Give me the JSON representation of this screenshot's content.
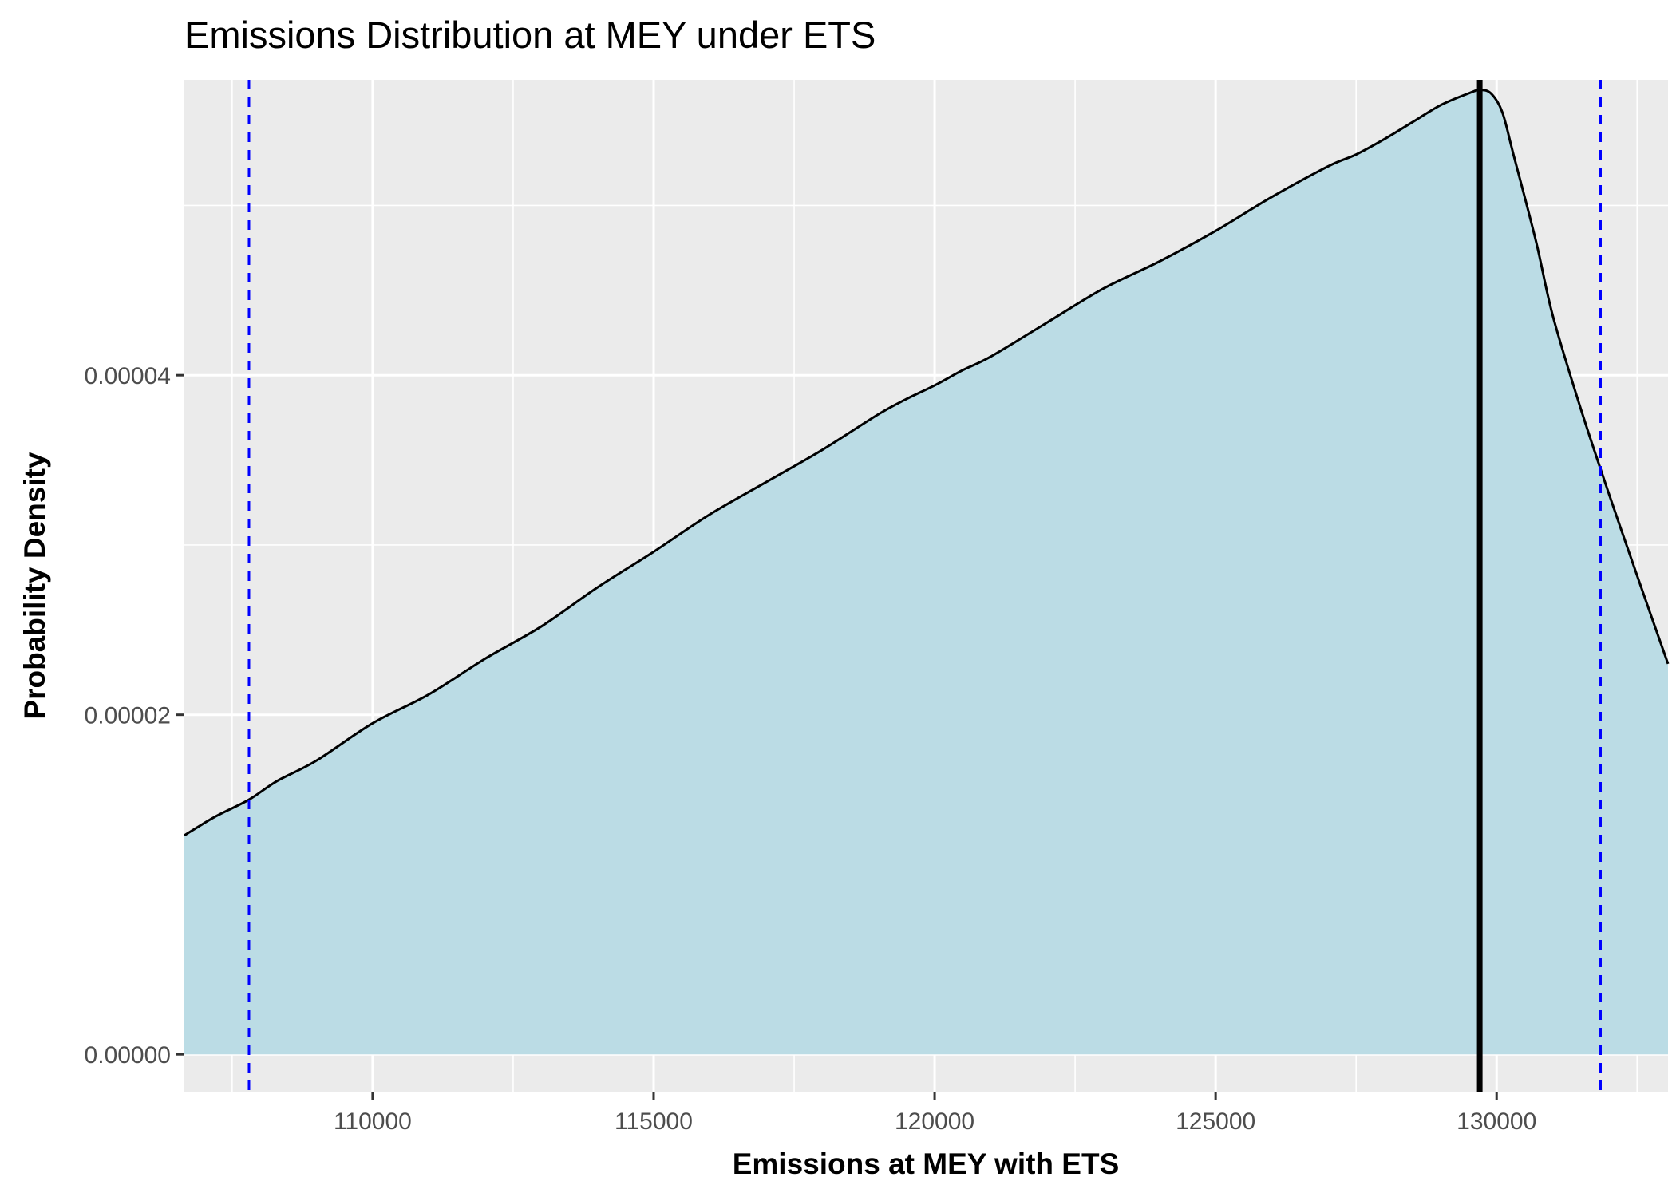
{
  "chart_data": {
    "type": "area",
    "title": "Emissions Distribution at MEY under ETS",
    "xlabel": "Emissions at MEY with ETS",
    "ylabel": "Probability Density",
    "xlim": [
      106650,
      133050
    ],
    "ylim": [
      -2.2e-06,
      5.74e-05
    ],
    "x_ticks": [
      110000,
      115000,
      120000,
      125000,
      130000
    ],
    "x_tick_labels": [
      "110000",
      "115000",
      "120000",
      "125000",
      "130000"
    ],
    "y_ticks": [
      0,
      2e-05,
      4e-05
    ],
    "y_tick_labels": [
      "0.00000",
      "0.00002",
      "0.00004"
    ],
    "grid": true,
    "density_curve": {
      "x": [
        106650,
        107200,
        107800,
        108300,
        109000,
        110000,
        111000,
        112000,
        113000,
        114000,
        115000,
        116000,
        117000,
        118000,
        119000,
        119500,
        120000,
        120500,
        121000,
        122000,
        123000,
        124000,
        125000,
        126000,
        127000,
        127500,
        128000,
        128500,
        129000,
        129500,
        129700,
        129900,
        130100,
        130300,
        130700,
        131000,
        131500,
        132000,
        132500,
        133050
      ],
      "y": [
        1.29e-05,
        1.4e-05,
        1.5e-05,
        1.61e-05,
        1.73e-05,
        1.95e-05,
        2.12e-05,
        2.33e-05,
        2.52e-05,
        2.75e-05,
        2.96e-05,
        3.18e-05,
        3.37e-05,
        3.56e-05,
        3.77e-05,
        3.86e-05,
        3.94e-05,
        4.03e-05,
        4.11e-05,
        4.31e-05,
        4.51e-05,
        4.67e-05,
        4.85e-05,
        5.05e-05,
        5.23e-05,
        5.3e-05,
        5.39e-05,
        5.49e-05,
        5.59e-05,
        5.66e-05,
        5.68e-05,
        5.66e-05,
        5.55e-05,
        5.3e-05,
        4.79e-05,
        4.35e-05,
        3.8e-05,
        3.3e-05,
        2.82e-05,
        2.3e-05
      ]
    },
    "fill_color": "#bbdce5",
    "line_color": "#000000",
    "vertical_lines": [
      {
        "x": 129700,
        "color": "#000000",
        "style": "solid"
      },
      {
        "x": 107800,
        "color": "#0000ff",
        "style": "dashed"
      },
      {
        "x": 131850,
        "color": "#0000ff",
        "style": "dashed"
      }
    ],
    "panel_background": "#ebebeb",
    "grid_color": "#ffffff"
  }
}
